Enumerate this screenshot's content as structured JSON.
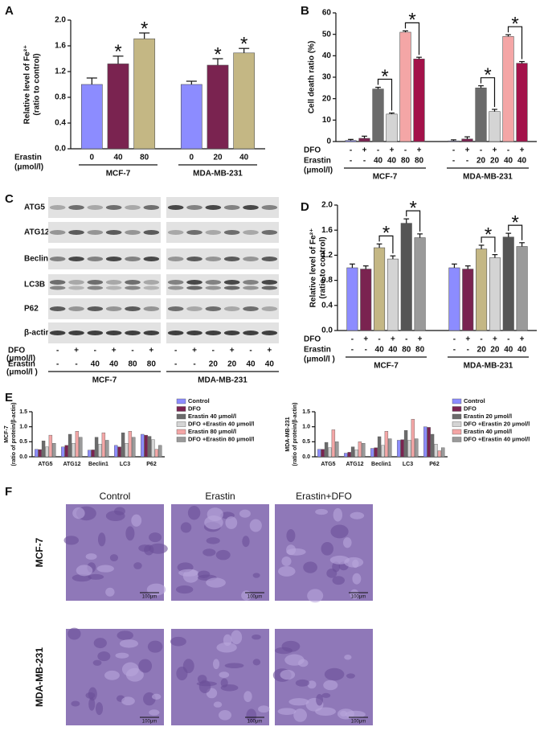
{
  "panels": [
    "A",
    "B",
    "C",
    "D",
    "E",
    "F"
  ],
  "chart_data": [
    {
      "type": "bar",
      "ylabel": [
        "Relative level of Fe²⁺",
        "(ratio to control)"
      ],
      "ylim": [
        0,
        2
      ],
      "yticks": [
        {
          "value": 0,
          "label": "0.0"
        },
        0.4,
        0.8,
        1.2,
        1.6,
        {
          "value": 2,
          "label": "2.0"
        }
      ],
      "groups": [
        "MCF-7",
        "MDA-MB-231"
      ],
      "rows": [
        {
          "label": "Erastin",
          "sublabel": "(μmol/l)",
          "categories": [
            "0",
            "40",
            "80",
            "0",
            "20",
            "40"
          ]
        }
      ],
      "values": [
        1.0,
        1.32,
        1.71,
        1.0,
        1.3,
        1.49
      ],
      "errors": [
        0.1,
        0.12,
        0.09,
        0.05,
        0.1,
        0.07
      ],
      "colors": [
        "#8c8cff",
        "#7a2350",
        "#c4b784",
        "#8c8cff",
        "#7a2350",
        "#c4b784"
      ],
      "annotations": [
        null,
        "*",
        "*",
        null,
        "*",
        "*"
      ],
      "bracketed": false
    },
    {
      "type": "bar",
      "ylabel": [
        "Cell death ratio (%)"
      ],
      "ylim": [
        0,
        60
      ],
      "yticks": [
        0,
        10,
        20,
        30,
        40,
        50,
        60
      ],
      "groups": [
        "MCF-7",
        "MDA-MB-231"
      ],
      "rows": [
        {
          "label": "DFO",
          "categories": [
            "-",
            "+",
            "-",
            "+",
            "-",
            "+",
            "-",
            "+",
            "-",
            "+",
            "-",
            "+"
          ]
        },
        {
          "label": "Erastin",
          "sublabel": "(μmol/l)",
          "categories": [
            "-",
            "-",
            "40",
            "40",
            "80",
            "80",
            "-",
            "-",
            "20",
            "20",
            "40",
            "40"
          ]
        }
      ],
      "values": [
        0.5,
        1.5,
        24.5,
        12.8,
        51,
        38.5,
        0.3,
        1.2,
        25,
        14,
        49,
        36.5
      ],
      "errors": [
        0.5,
        1,
        0.8,
        0.5,
        0.6,
        0.8,
        0.5,
        1,
        1,
        1,
        0.8,
        0.8
      ],
      "colors": [
        "#8c8cff",
        "#7a2350",
        "#6b6b6b",
        "#d4d4d4",
        "#f4a6a6",
        "#a3124a",
        "#8c8cff",
        "#7a2350",
        "#6b6b6b",
        "#d4d4d4",
        "#f4a6a6",
        "#a3124a"
      ],
      "annotations": [
        null,
        null,
        null,
        "*",
        null,
        "*",
        null,
        null,
        null,
        "*",
        null,
        "*"
      ],
      "bracketed": true
    },
    {
      "type": "bar",
      "ylabel": [
        "Relative level of Fe²⁺",
        "(ratio to control)"
      ],
      "ylim": [
        0,
        2
      ],
      "yticks": [
        {
          "value": 0,
          "label": "0.0"
        },
        0.4,
        0.8,
        1.2,
        1.6,
        {
          "value": 2,
          "label": "2.0"
        }
      ],
      "groups": [
        "MCF-7",
        "MDA-MB-231"
      ],
      "rows": [
        {
          "label": "DFO",
          "categories": [
            "-",
            "+",
            "-",
            "+",
            "-",
            "+",
            "-",
            "+",
            "-",
            "+",
            "-",
            "+"
          ]
        },
        {
          "label": "Erastin",
          "sublabel": "(μmol/l )",
          "categories": [
            "-",
            "-",
            "40",
            "40",
            "80",
            "80",
            "-",
            "-",
            "20",
            "20",
            "40",
            "40"
          ]
        }
      ],
      "values": [
        1.0,
        0.98,
        1.32,
        1.14,
        1.71,
        1.48,
        1.0,
        0.98,
        1.3,
        1.16,
        1.49,
        1.34
      ],
      "errors": [
        0.06,
        0.05,
        0.06,
        0.05,
        0.07,
        0.06,
        0.06,
        0.05,
        0.06,
        0.05,
        0.06,
        0.06
      ],
      "colors": [
        "#8c8cff",
        "#7a2350",
        "#c4b784",
        "#d4d4d4",
        "#555555",
        "#9a9a9a",
        "#8c8cff",
        "#7a2350",
        "#c4b784",
        "#d4d4d4",
        "#555555",
        "#9a9a9a"
      ],
      "annotations": [
        null,
        null,
        null,
        "*",
        null,
        "*",
        null,
        null,
        null,
        "*",
        null,
        "*"
      ],
      "bracketed": true
    },
    {
      "type": "grouped_bar",
      "ylabel": [
        "MCF-7",
        "(ratio of protein/β-actin)"
      ],
      "ylim": [
        0,
        1.5
      ],
      "yticks": [
        {
          "value": 0,
          "label": "0.0"
        },
        0.5,
        {
          "value": 1,
          "label": "1.0"
        },
        1.5
      ],
      "categories": [
        "ATG5",
        "ATG12",
        "Beclin1",
        "LC3",
        "P62"
      ],
      "series": [
        {
          "name": "Control",
          "color": "#8c8cff",
          "values": [
            0.25,
            0.33,
            0.22,
            0.38,
            0.75
          ]
        },
        {
          "name": "DFO",
          "color": "#7a2350",
          "values": [
            0.24,
            0.38,
            0.23,
            0.33,
            0.72
          ]
        },
        {
          "name": "Erastin 40 μmol/l",
          "color": "#6b6b6b",
          "values": [
            0.53,
            0.75,
            0.65,
            0.8,
            0.68
          ]
        },
        {
          "name": "DFO +Erastin 40 μmol/l",
          "color": "#d4d4d4",
          "values": [
            0.33,
            0.45,
            0.42,
            0.45,
            0.57
          ]
        },
        {
          "name": "Erastin 80 μmol/l",
          "color": "#f4a6a6",
          "values": [
            0.72,
            0.85,
            0.8,
            0.85,
            0.25
          ]
        },
        {
          "name": "DFO +Erastin 80 μmol/l",
          "color": "#9a9a9a",
          "values": [
            0.45,
            0.65,
            0.55,
            0.65,
            0.38
          ]
        }
      ]
    },
    {
      "type": "grouped_bar",
      "ylabel": [
        "MDA-MB-231",
        "(ratio of protein/β-actin)"
      ],
      "ylim": [
        0,
        1.5
      ],
      "yticks": [
        {
          "value": 0,
          "label": "0.0"
        },
        0.5,
        {
          "value": 1,
          "label": "1.0"
        },
        1.5
      ],
      "categories": [
        "ATG5",
        "ATG12",
        "Beclin1",
        "LC3",
        "P62"
      ],
      "series": [
        {
          "name": "Control",
          "color": "#8c8cff",
          "values": [
            0.25,
            0.12,
            0.28,
            0.55,
            1.0
          ]
        },
        {
          "name": "DFO",
          "color": "#7a2350",
          "values": [
            0.25,
            0.15,
            0.3,
            0.57,
            0.98
          ]
        },
        {
          "name": "Erastin  20 μmol/l",
          "color": "#6b6b6b",
          "values": [
            0.48,
            0.33,
            0.67,
            0.88,
            0.75
          ]
        },
        {
          "name": "DFO +Erastin  20 μmol/l",
          "color": "#d4d4d4",
          "values": [
            0.3,
            0.23,
            0.38,
            0.55,
            0.42
          ]
        },
        {
          "name": "Erastin  40 μmol/l",
          "color": "#f4a6a6",
          "values": [
            0.9,
            0.5,
            0.85,
            1.25,
            0.2
          ]
        },
        {
          "name": "DFO +Erastin  40 μmol/l",
          "color": "#9a9a9a",
          "values": [
            0.5,
            0.45,
            0.6,
            0.6,
            0.3
          ]
        }
      ]
    }
  ],
  "blots": {
    "proteins": [
      "ATG5",
      "ATG12",
      "Beclin1",
      "LC3B",
      "P62",
      "β-actin"
    ],
    "groups": [
      "MCF-7",
      "MDA-MB-231"
    ],
    "rows": [
      {
        "label": "DFO",
        "sublabel": "(μmol/l)",
        "categories": [
          "-",
          "+",
          "-",
          "+",
          "-",
          "+",
          "-",
          "+",
          "-",
          "+",
          "-",
          "+"
        ]
      },
      {
        "label": "Erastin",
        "sublabel": "(μmol/l )",
        "categories": [
          "-",
          "-",
          "40",
          "40",
          "80",
          "80",
          "-",
          "-",
          "20",
          "20",
          "40",
          "40"
        ]
      }
    ]
  },
  "micrographs": {
    "columns": [
      "Control",
      "Erastin",
      "Erastin+DFO"
    ],
    "rows": [
      "MCF-7",
      "MDA-MB-231"
    ],
    "scale": "100μm"
  }
}
